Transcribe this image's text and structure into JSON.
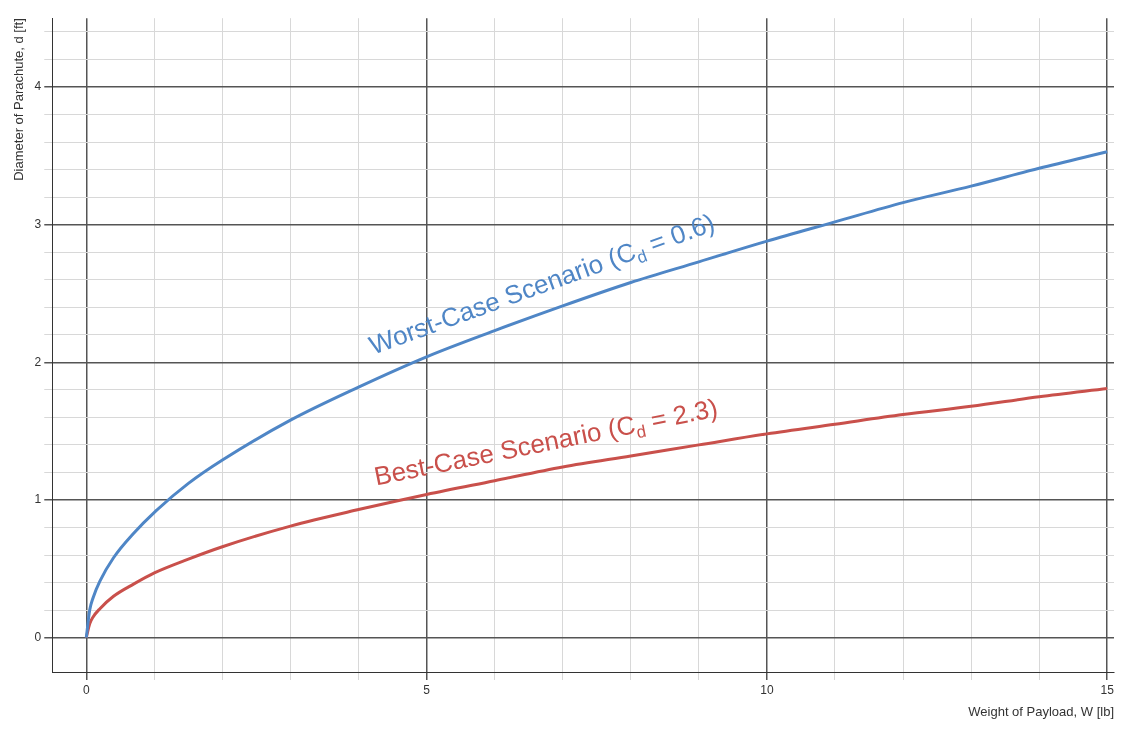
{
  "chart_data": {
    "type": "line",
    "xlabel": "Weight of Payload, W [lb]",
    "ylabel": "Diameter of Parachute, d [ft]",
    "xlim": [
      -0.5,
      15.1
    ],
    "ylim": [
      -0.25,
      4.5
    ],
    "xticks": [
      0,
      {
        "value": 1,
        "label": null
      },
      {
        "value": 2,
        "label": null
      },
      {
        "value": 3,
        "label": null
      },
      {
        "value": 4,
        "label": null
      },
      5,
      {
        "value": 6,
        "label": null
      },
      {
        "value": 7,
        "label": null
      },
      {
        "value": 8,
        "label": null
      },
      {
        "value": 9,
        "label": null
      },
      10,
      {
        "value": 11,
        "label": null
      },
      {
        "value": 12,
        "label": null
      },
      {
        "value": 13,
        "label": null
      },
      {
        "value": 14,
        "label": null
      },
      15
    ],
    "yticks": [
      0,
      {
        "value": 0.2,
        "label": null
      },
      {
        "value": 0.4,
        "label": null
      },
      {
        "value": 0.6,
        "label": null
      },
      {
        "value": 0.8,
        "label": null
      },
      1,
      {
        "value": 1.2,
        "label": null
      },
      {
        "value": 1.4,
        "label": null
      },
      {
        "value": 1.6,
        "label": null
      },
      {
        "value": 1.8,
        "label": null
      },
      2,
      {
        "value": 2.2,
        "label": null
      },
      {
        "value": 2.4,
        "label": null
      },
      {
        "value": 2.6,
        "label": null
      },
      {
        "value": 2.8,
        "label": null
      },
      3,
      {
        "value": 3.2,
        "label": null
      },
      {
        "value": 3.4,
        "label": null
      },
      {
        "value": 3.6,
        "label": null
      },
      {
        "value": 3.8,
        "label": null
      },
      4,
      {
        "value": 4.2,
        "label": null
      },
      {
        "value": 4.4,
        "label": null
      }
    ],
    "grid": true,
    "marker": "none",
    "line_style": "solid",
    "x": [
      0,
      0.05,
      0.1,
      0.2,
      0.4,
      0.7,
      1,
      1.5,
      2,
      3,
      4,
      5,
      6,
      7,
      8,
      9,
      10,
      11,
      12,
      13,
      14,
      15
    ],
    "series": [
      {
        "color": "#4f86c6",
        "values": [
          0,
          0.2,
          0.29,
          0.41,
          0.58,
          0.76,
          0.91,
          1.12,
          1.29,
          1.58,
          1.82,
          2.04,
          2.23,
          2.41,
          2.58,
          2.73,
          2.88,
          3.02,
          3.16,
          3.28,
          3.41,
          3.53
        ]
      },
      {
        "color": "#c9504b",
        "values": [
          0,
          0.1,
          0.15,
          0.21,
          0.3,
          0.39,
          0.47,
          0.57,
          0.66,
          0.81,
          0.93,
          1.04,
          1.14,
          1.24,
          1.32,
          1.4,
          1.48,
          1.55,
          1.62,
          1.68,
          1.75,
          1.81
        ]
      }
    ],
    "annotations": [
      "Worst-Case Scenario (C$_{d}$ = 0.6)",
      "Best-Case Scenario (C$_{d}$ = 2.3)"
    ]
  }
}
